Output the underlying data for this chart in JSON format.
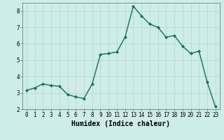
{
  "x": [
    0,
    1,
    2,
    3,
    4,
    5,
    6,
    7,
    8,
    9,
    10,
    11,
    12,
    13,
    14,
    15,
    16,
    17,
    18,
    19,
    20,
    21,
    22,
    23
  ],
  "y": [
    3.15,
    3.3,
    3.55,
    3.45,
    3.4,
    2.9,
    2.75,
    2.65,
    3.55,
    5.35,
    5.4,
    5.5,
    6.4,
    8.3,
    7.7,
    7.2,
    7.0,
    6.4,
    6.5,
    5.85,
    5.4,
    5.55,
    3.65,
    2.15
  ],
  "line_color": "#1a6b5a",
  "marker": "D",
  "marker_size": 2.0,
  "bg_color": "#cdecea",
  "grid_color": "#b8d8d6",
  "xlabel": "Humidex (Indice chaleur)",
  "ylim": [
    2,
    8.5
  ],
  "xlim": [
    -0.5,
    23.5
  ],
  "yticks": [
    2,
    3,
    4,
    5,
    6,
    7,
    8
  ],
  "xticks": [
    0,
    1,
    2,
    3,
    4,
    5,
    6,
    7,
    8,
    9,
    10,
    11,
    12,
    13,
    14,
    15,
    16,
    17,
    18,
    19,
    20,
    21,
    22,
    23
  ],
  "xtick_labels": [
    "0",
    "1",
    "2",
    "3",
    "4",
    "5",
    "6",
    "7",
    "8",
    "9",
    "10",
    "11",
    "12",
    "13",
    "14",
    "15",
    "16",
    "17",
    "18",
    "19",
    "20",
    "21",
    "22",
    "23"
  ],
  "tick_fontsize": 5.5,
  "xlabel_fontsize": 7.0,
  "line_width": 1.0
}
